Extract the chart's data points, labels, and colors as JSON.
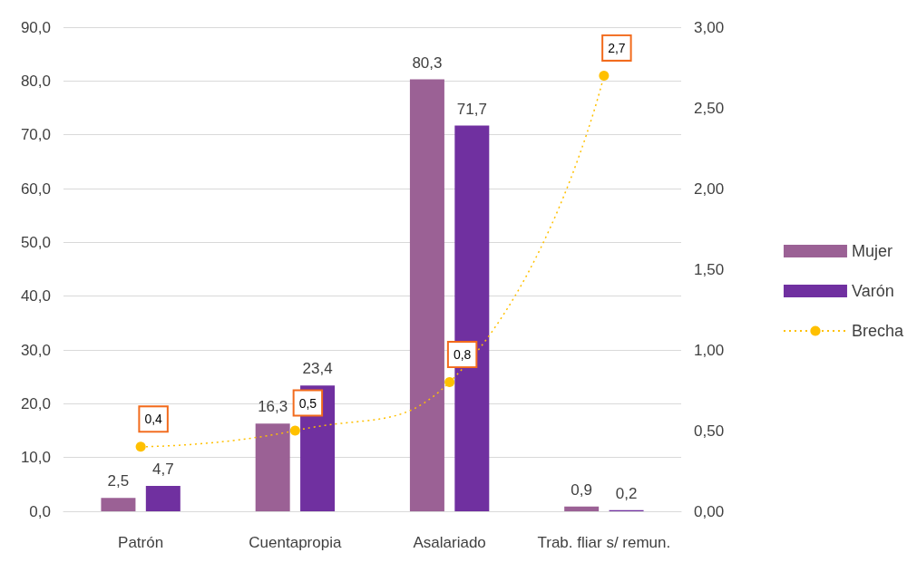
{
  "chart_data": {
    "type": "bar",
    "categories": [
      "Patrón",
      "Cuentapropia",
      "Asalariado",
      "Trab. fliar s/ remun."
    ],
    "series": [
      {
        "name": "Mujer",
        "color": "#9b6195",
        "values": [
          2.5,
          16.3,
          80.3,
          0.9
        ],
        "value_labels": [
          "2,5",
          "16,3",
          "80,3",
          "0,9"
        ]
      },
      {
        "name": "Varón",
        "color": "#7030a0",
        "values": [
          4.7,
          23.4,
          71.7,
          0.2
        ],
        "value_labels": [
          "4,7",
          "23,4",
          "71,7",
          "0,2"
        ]
      },
      {
        "name": "Brecha",
        "type": "line",
        "axis": "y2",
        "color": "#ffc000",
        "marker": "circle",
        "line_style": "dotted",
        "values": [
          0.4,
          0.5,
          0.8,
          2.7
        ],
        "value_labels": [
          "0,4",
          "0,5",
          "0,8",
          "2,7"
        ]
      }
    ],
    "ylim": [
      0,
      90
    ],
    "yticks": [
      {
        "value": 0,
        "label": "0,0"
      },
      {
        "value": 10,
        "label": "10,0"
      },
      {
        "value": 20,
        "label": "20,0"
      },
      {
        "value": 30,
        "label": "30,0"
      },
      {
        "value": 40,
        "label": "40,0"
      },
      {
        "value": 50,
        "label": "50,0"
      },
      {
        "value": 60,
        "label": "60,0"
      },
      {
        "value": 70,
        "label": "70,0"
      },
      {
        "value": 80,
        "label": "80,0"
      },
      {
        "value": 90,
        "label": "90,0"
      }
    ],
    "y2lim": [
      0,
      3
    ],
    "y2ticks": [
      {
        "value": 0,
        "label": "0,00"
      },
      {
        "value": 0.5,
        "label": "0,50"
      },
      {
        "value": 1,
        "label": "1,00"
      },
      {
        "value": 1.5,
        "label": "1,50"
      },
      {
        "value": 2,
        "label": "2,00"
      },
      {
        "value": 2.5,
        "label": "2,50"
      },
      {
        "value": 3,
        "label": "3,00"
      }
    ],
    "grid": "y",
    "legend": "right"
  }
}
